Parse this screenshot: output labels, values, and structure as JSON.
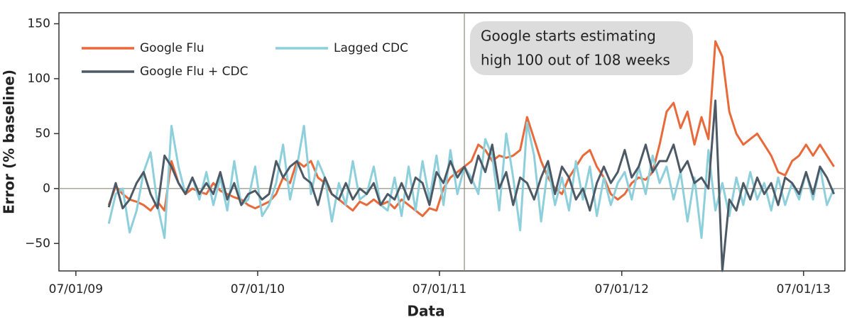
{
  "chart_data": {
    "type": "line",
    "x_label": "Data",
    "y_label": "Error (% baseline)",
    "x": [
      "2009-09-05",
      "2009-09-19",
      "2009-10-03",
      "2009-10-17",
      "2009-10-31",
      "2009-11-14",
      "2009-11-28",
      "2009-12-12",
      "2009-12-26",
      "2010-01-09",
      "2010-01-23",
      "2010-02-06",
      "2010-02-20",
      "2010-03-06",
      "2010-03-20",
      "2010-04-03",
      "2010-04-17",
      "2010-05-01",
      "2010-05-15",
      "2010-05-29",
      "2010-06-12",
      "2010-06-26",
      "2010-07-10",
      "2010-07-24",
      "2010-08-07",
      "2010-08-21",
      "2010-09-04",
      "2010-09-18",
      "2010-10-02",
      "2010-10-16",
      "2010-10-30",
      "2010-11-13",
      "2010-11-27",
      "2010-12-11",
      "2010-12-25",
      "2011-01-08",
      "2011-01-22",
      "2011-02-05",
      "2011-02-19",
      "2011-03-05",
      "2011-03-19",
      "2011-04-02",
      "2011-04-16",
      "2011-04-30",
      "2011-05-14",
      "2011-05-28",
      "2011-06-11",
      "2011-06-25",
      "2011-07-09",
      "2011-07-23",
      "2011-08-06",
      "2011-08-20",
      "2011-09-03",
      "2011-09-17",
      "2011-10-01",
      "2011-10-15",
      "2011-10-29",
      "2011-11-12",
      "2011-11-26",
      "2011-12-10",
      "2011-12-24",
      "2012-01-07",
      "2012-01-21",
      "2012-02-04",
      "2012-02-18",
      "2012-03-03",
      "2012-03-17",
      "2012-03-31",
      "2012-04-14",
      "2012-04-28",
      "2012-05-12",
      "2012-05-26",
      "2012-06-09",
      "2012-06-23",
      "2012-07-07",
      "2012-07-21",
      "2012-08-04",
      "2012-08-18",
      "2012-09-01",
      "2012-09-15",
      "2012-09-29",
      "2012-10-13",
      "2012-10-27",
      "2012-11-10",
      "2012-11-24",
      "2012-12-08",
      "2012-12-22",
      "2013-01-05",
      "2013-01-19",
      "2013-02-02",
      "2013-02-16",
      "2013-03-02",
      "2013-03-16",
      "2013-03-30",
      "2013-04-13",
      "2013-04-27",
      "2013-05-11",
      "2013-05-25",
      "2013-06-08",
      "2013-06-22",
      "2013-07-06",
      "2013-07-20",
      "2013-08-03",
      "2013-08-17",
      "2013-08-31"
    ],
    "series": [
      {
        "name": "Google Flu",
        "color": "#e8693a",
        "values": [
          -15,
          2,
          -5,
          -10,
          -12,
          -15,
          -20,
          -12,
          -20,
          25,
          5,
          -5,
          0,
          -3,
          -5,
          5,
          -2,
          -5,
          -8,
          -10,
          -15,
          -18,
          -15,
          -12,
          -5,
          10,
          5,
          25,
          20,
          25,
          10,
          5,
          -5,
          -10,
          -15,
          -20,
          -12,
          -15,
          -10,
          -15,
          -12,
          -18,
          -10,
          -15,
          -20,
          -25,
          -18,
          -20,
          0,
          10,
          15,
          20,
          25,
          40,
          35,
          25,
          30,
          28,
          30,
          35,
          65,
          45,
          25,
          10,
          0,
          -5,
          10,
          20,
          30,
          35,
          20,
          10,
          -5,
          -10,
          -5,
          5,
          10,
          8,
          15,
          40,
          70,
          78,
          55,
          70,
          40,
          65,
          45,
          134,
          120,
          70,
          50,
          40,
          45,
          50,
          40,
          30,
          15,
          12,
          25,
          30,
          40,
          30,
          40,
          30,
          20
        ]
      },
      {
        "name": "Lagged CDC",
        "color": "#8ecfdc",
        "values": [
          -32,
          -5,
          0,
          -40,
          -20,
          15,
          33,
          -15,
          -45,
          57,
          20,
          -5,
          10,
          -10,
          15,
          -15,
          10,
          -20,
          25,
          -15,
          -10,
          20,
          -25,
          -15,
          5,
          40,
          -10,
          20,
          57,
          -5,
          25,
          10,
          -30,
          5,
          -15,
          25,
          -10,
          -5,
          20,
          -15,
          -20,
          10,
          -25,
          20,
          -20,
          25,
          -10,
          30,
          -15,
          35,
          -5,
          20,
          10,
          -5,
          45,
          30,
          -20,
          50,
          10,
          -38,
          60,
          30,
          -30,
          20,
          -15,
          10,
          -20,
          25,
          -10,
          20,
          -25,
          10,
          -15,
          5,
          15,
          -10,
          20,
          -5,
          30,
          5,
          20,
          -10,
          15,
          -30,
          10,
          -45,
          35,
          -20,
          5,
          -25,
          10,
          -15,
          15,
          -10,
          5,
          -20,
          10,
          -15,
          5,
          -10,
          15,
          -10,
          20,
          -15,
          0
        ]
      },
      {
        "name": "Google Flu + CDC",
        "color": "#4d5a66",
        "values": [
          -17,
          5,
          -18,
          -10,
          5,
          15,
          -5,
          -18,
          30,
          20,
          5,
          -5,
          10,
          -5,
          5,
          -5,
          15,
          -10,
          5,
          -15,
          -5,
          -2,
          -10,
          -5,
          25,
          10,
          20,
          25,
          10,
          5,
          -15,
          10,
          -5,
          -10,
          5,
          -10,
          0,
          -5,
          5,
          -15,
          -5,
          -10,
          5,
          -10,
          10,
          5,
          -15,
          15,
          5,
          25,
          10,
          20,
          5,
          30,
          15,
          40,
          0,
          15,
          -15,
          10,
          5,
          -10,
          10,
          25,
          -5,
          20,
          10,
          -10,
          0,
          -20,
          5,
          20,
          5,
          15,
          35,
          10,
          20,
          40,
          15,
          25,
          25,
          40,
          15,
          25,
          5,
          10,
          0,
          80,
          -75,
          -10,
          -20,
          5,
          -10,
          10,
          -5,
          5,
          -15,
          10,
          5,
          -5,
          15,
          -5,
          20,
          10,
          -5
        ]
      }
    ],
    "xlim": [
      "2009-05-28",
      "2013-09-22"
    ],
    "xticks": [
      {
        "value": "2009-07-01",
        "label": "07/01/09"
      },
      {
        "value": "2010-07-01",
        "label": "07/01/10"
      },
      {
        "value": "2011-07-01",
        "label": "07/01/11"
      },
      {
        "value": "2012-07-01",
        "label": "07/01/12"
      },
      {
        "value": "2013-07-01",
        "label": "07/01/13"
      }
    ],
    "ylim": [
      -75,
      160
    ],
    "yticks": [
      {
        "value": -50,
        "label": "−50"
      },
      0,
      50,
      100,
      150
    ],
    "hline": 0,
    "vline": "2011-08-20",
    "annotation": [
      "Google starts estimating",
      "high 100 out of 108 weeks"
    ],
    "legend": "upper left"
  }
}
